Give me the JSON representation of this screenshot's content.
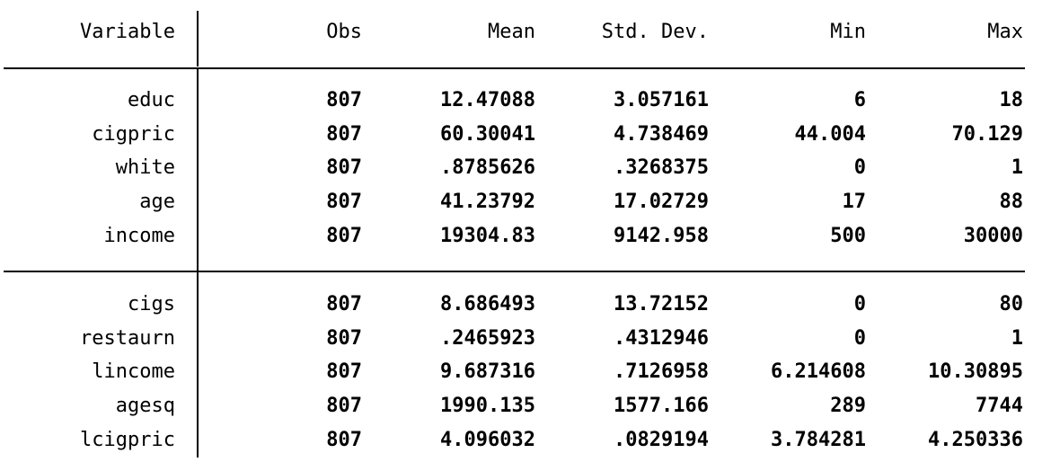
{
  "header": {
    "variable": "Variable",
    "obs": "Obs",
    "mean": "Mean",
    "sd": "Std. Dev.",
    "min": "Min",
    "max": "Max"
  },
  "group1": [
    {
      "name": "educ",
      "obs": "807",
      "mean": "12.47088",
      "sd": "3.057161",
      "min": "6",
      "max": "18"
    },
    {
      "name": "cigpric",
      "obs": "807",
      "mean": "60.30041",
      "sd": "4.738469",
      "min": "44.004",
      "max": "70.129"
    },
    {
      "name": "white",
      "obs": "807",
      "mean": ".8785626",
      "sd": ".3268375",
      "min": "0",
      "max": "1"
    },
    {
      "name": "age",
      "obs": "807",
      "mean": "41.23792",
      "sd": "17.02729",
      "min": "17",
      "max": "88"
    },
    {
      "name": "income",
      "obs": "807",
      "mean": "19304.83",
      "sd": "9142.958",
      "min": "500",
      "max": "30000"
    }
  ],
  "group2": [
    {
      "name": "cigs",
      "obs": "807",
      "mean": "8.686493",
      "sd": "13.72152",
      "min": "0",
      "max": "80"
    },
    {
      "name": "restaurn",
      "obs": "807",
      "mean": ".2465923",
      "sd": ".4312946",
      "min": "0",
      "max": "1"
    },
    {
      "name": "lincome",
      "obs": "807",
      "mean": "9.687316",
      "sd": ".7126958",
      "min": "6.214608",
      "max": "10.30895"
    },
    {
      "name": "agesq",
      "obs": "807",
      "mean": "1990.135",
      "sd": "1577.166",
      "min": "289",
      "max": "7744"
    },
    {
      "name": "lcigpric",
      "obs": "807",
      "mean": "4.096032",
      "sd": ".0829194",
      "min": "3.784281",
      "max": "4.250336"
    }
  ]
}
